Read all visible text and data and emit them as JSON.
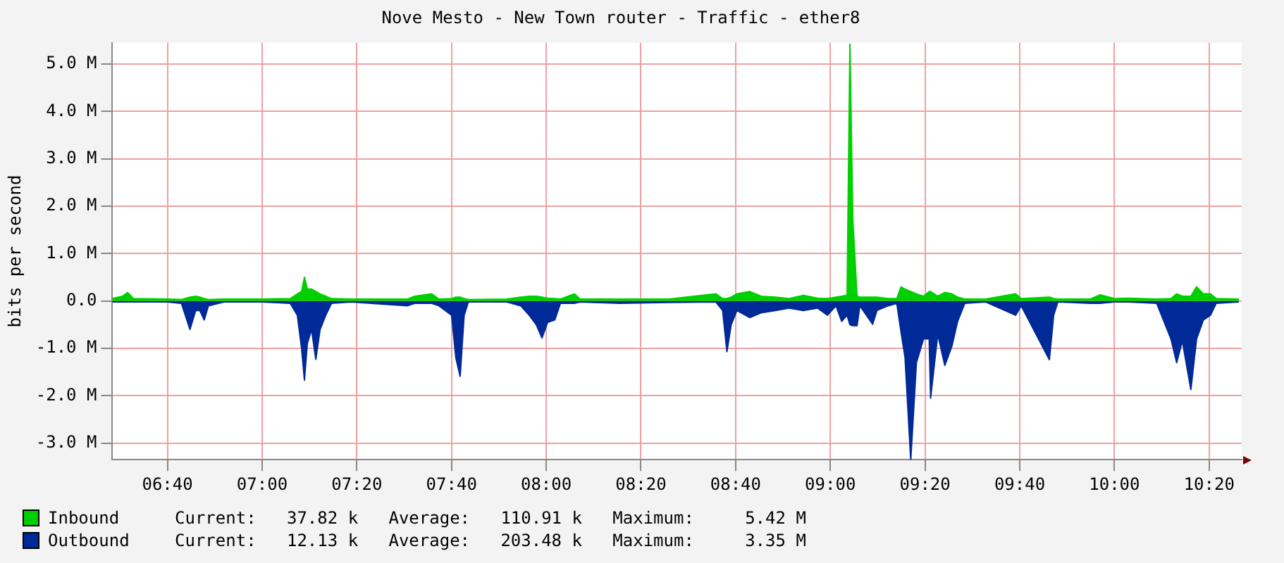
{
  "chart_data": {
    "type": "area",
    "title": "Nove Mesto - New Town router - Traffic - ether8",
    "ylabel": "bits per second",
    "x": [
      6.473,
      6.508,
      6.527,
      6.547,
      6.667,
      6.716,
      6.746,
      6.766,
      6.781,
      6.796,
      6.811,
      6.866,
      7.0,
      7.099,
      7.124,
      7.139,
      7.149,
      7.159,
      7.174,
      7.189,
      7.204,
      7.224,
      7.244,
      7.313,
      7.512,
      7.537,
      7.597,
      7.622,
      7.667,
      7.682,
      7.697,
      7.711,
      7.726,
      7.861,
      7.91,
      7.94,
      7.965,
      7.985,
      8.005,
      8.03,
      8.05,
      8.099,
      8.119,
      8.258,
      8.432,
      8.597,
      8.621,
      8.636,
      8.651,
      8.671,
      8.716,
      8.756,
      8.806,
      8.855,
      8.905,
      8.955,
      8.99,
      9.02,
      9.04,
      9.059,
      9.069,
      9.079,
      9.094,
      9.104,
      9.149,
      9.164,
      9.204,
      9.234,
      9.249,
      9.263,
      9.283,
      9.303,
      9.328,
      9.348,
      9.353,
      9.378,
      9.403,
      9.428,
      9.448,
      9.473,
      9.547,
      9.652,
      9.672,
      9.771,
      9.786,
      9.801,
      9.915,
      9.95,
      9.999,
      10.049,
      10.149,
      10.199,
      10.219,
      10.239,
      10.269,
      10.289,
      10.313,
      10.338,
      10.358,
      10.438
    ],
    "series": [
      {
        "name": "Inbound",
        "color": "#00cf00",
        "values": [
          0.05,
          0.1,
          0.18,
          0.05,
          0.04,
          0.03,
          0.08,
          0.1,
          0.08,
          0.05,
          0.03,
          0.04,
          0.04,
          0.05,
          0.15,
          0.2,
          0.5,
          0.25,
          0.25,
          0.2,
          0.15,
          0.1,
          0.05,
          0.04,
          0.04,
          0.1,
          0.15,
          0.04,
          0.05,
          0.08,
          0.08,
          0.05,
          0.03,
          0.04,
          0.08,
          0.1,
          0.1,
          0.08,
          0.06,
          0.05,
          0.04,
          0.15,
          0.04,
          0.04,
          0.04,
          0.15,
          0.05,
          0.05,
          0.08,
          0.15,
          0.2,
          0.1,
          0.08,
          0.05,
          0.12,
          0.06,
          0.05,
          0.08,
          0.1,
          0.12,
          5.42,
          1.73,
          0.1,
          0.08,
          0.08,
          0.08,
          0.05,
          0.05,
          0.3,
          0.25,
          0.2,
          0.15,
          0.1,
          0.2,
          0.2,
          0.1,
          0.18,
          0.15,
          0.08,
          0.04,
          0.04,
          0.15,
          0.05,
          0.08,
          0.05,
          0.04,
          0.04,
          0.13,
          0.05,
          0.06,
          0.04,
          0.05,
          0.15,
          0.1,
          0.1,
          0.3,
          0.15,
          0.15,
          0.05,
          0.04
        ]
      },
      {
        "name": "Outbound",
        "color": "#002a97",
        "values": [
          -0.02,
          -0.02,
          -0.02,
          -0.02,
          -0.02,
          -0.05,
          -0.6,
          -0.2,
          -0.2,
          -0.4,
          -0.1,
          -0.02,
          -0.02,
          -0.05,
          -0.3,
          -1.0,
          -1.67,
          -0.9,
          -0.6,
          -1.23,
          -0.6,
          -0.3,
          -0.05,
          -0.02,
          -0.1,
          -0.05,
          -0.05,
          -0.1,
          -0.3,
          -1.2,
          -1.59,
          -0.3,
          -0.02,
          -0.02,
          -0.1,
          -0.3,
          -0.5,
          -0.78,
          -0.45,
          -0.4,
          -0.05,
          -0.05,
          -0.02,
          -0.05,
          -0.03,
          -0.02,
          -0.2,
          -1.07,
          -0.5,
          -0.2,
          -0.35,
          -0.25,
          -0.2,
          -0.15,
          -0.2,
          -0.15,
          -0.3,
          -0.1,
          -0.43,
          -0.3,
          -0.5,
          -0.52,
          -0.52,
          -0.1,
          -0.49,
          -0.2,
          -0.1,
          -0.05,
          -0.66,
          -1.19,
          -3.35,
          -1.3,
          -0.8,
          -0.8,
          -2.05,
          -0.7,
          -1.36,
          -0.95,
          -0.43,
          -0.05,
          -0.02,
          -0.3,
          -0.1,
          -1.24,
          -0.3,
          -0.02,
          -0.05,
          -0.05,
          -0.02,
          -0.02,
          -0.05,
          -0.8,
          -1.3,
          -0.84,
          -1.87,
          -0.8,
          -0.4,
          -0.3,
          -0.05,
          -0.02
        ]
      }
    ],
    "xlim": [
      6.473,
      10.448
    ],
    "xticks": [
      {
        "value": 6.6667,
        "label": "06:40"
      },
      {
        "value": 7,
        "label": "07:00"
      },
      {
        "value": 7.3333,
        "label": "07:20"
      },
      {
        "value": 7.6667,
        "label": "07:40"
      },
      {
        "value": 8,
        "label": "08:00"
      },
      {
        "value": 8.3333,
        "label": "08:20"
      },
      {
        "value": 8.6667,
        "label": "08:40"
      },
      {
        "value": 9,
        "label": "09:00"
      },
      {
        "value": 9.3333,
        "label": "09:20"
      },
      {
        "value": 9.6667,
        "label": "09:40"
      },
      {
        "value": 10,
        "label": "10:00"
      },
      {
        "value": 10.3333,
        "label": "10:20"
      }
    ],
    "ylim": [
      -3.35,
      5.45
    ],
    "yticks": [
      {
        "value": -3,
        "label": "-3.0 M"
      },
      {
        "value": -2,
        "label": "-2.0 M"
      },
      {
        "value": -1,
        "label": "-1.0 M"
      },
      {
        "value": 0,
        "label": "0.0"
      },
      {
        "value": 1,
        "label": "1.0 M"
      },
      {
        "value": 2,
        "label": "2.0 M"
      },
      {
        "value": 3,
        "label": "3.0 M"
      },
      {
        "value": 4,
        "label": "4.0 M"
      },
      {
        "value": 5,
        "label": "5.0 M"
      }
    ],
    "grid": true,
    "legend": "bottom left",
    "annotations": [
      "Current:   37.82 k   Average:   110.91 k   Maximum:     5.42 M",
      "Current:   12.13 k   Average:   203.48 k   Maximum:     3.35 M"
    ]
  }
}
